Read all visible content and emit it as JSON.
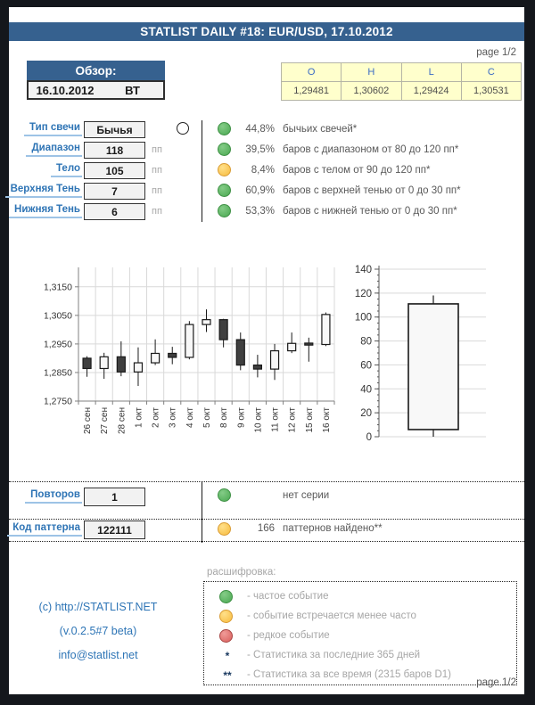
{
  "header": {
    "title": "STATLIST DAILY #18: EUR/USD, 17.10.2012",
    "page_top": "page 1/2",
    "page_bottom": "page 1/2"
  },
  "overview": {
    "title": "Обзор:",
    "date": "16.10.2012",
    "weekday": "ВТ"
  },
  "ohlc": {
    "headers": [
      "O",
      "H",
      "L",
      "C"
    ],
    "values": [
      "1,29481",
      "1,30602",
      "1,29424",
      "1,30531"
    ]
  },
  "stats": {
    "rows": [
      {
        "label": "Тип свечи",
        "value": "Бычья",
        "unit": "",
        "icon": "candle-type-circle-icon",
        "dot_class": "dot dot-green stat-dot",
        "percent": "44,8%",
        "desc": "бычьих свечей*"
      },
      {
        "label": "Диапазон",
        "value": "118",
        "unit": "пп",
        "icon": "",
        "dot_class": "dot dot-green stat-dot",
        "percent": "39,5%",
        "desc": "баров с диапазоном от 80 до 120 пп*"
      },
      {
        "label": "Тело",
        "value": "105",
        "unit": "пп",
        "icon": "",
        "dot_class": "dot dot-yellow stat-dot",
        "percent": "8,4%",
        "desc": "баров с телом от 90 до 120 пп*"
      },
      {
        "label": "Верхняя Тень",
        "value": "7",
        "unit": "пп",
        "icon": "",
        "dot_class": "dot dot-green stat-dot",
        "percent": "60,9%",
        "desc": "баров с верхней тенью от 0 до 30 пп*"
      },
      {
        "label": "Нижняя Тень",
        "value": "6",
        "unit": "пп",
        "icon": "",
        "dot_class": "dot dot-green stat-dot",
        "percent": "53,3%",
        "desc": "баров с нижней тенью от 0 до 30 пп*"
      }
    ]
  },
  "patterns": {
    "rows": [
      {
        "label": "Повторов",
        "value": "1",
        "dot_class": "dot dot-green pat-dot",
        "count": "",
        "desc": "нет серии"
      },
      {
        "label": "Код паттерна",
        "value": "122111",
        "dot_class": "dot dot-yellow pat-dot",
        "count": "166",
        "desc": "паттернов найдено**"
      }
    ]
  },
  "legend": {
    "title": "расшифровка:",
    "items": [
      {
        "marker_text": "",
        "mark_class": "lmark dot dot-green",
        "text": "- частое событие"
      },
      {
        "marker_text": "",
        "mark_class": "lmark dot dot-yellow",
        "text": "- событие встречается менее часто"
      },
      {
        "marker_text": "",
        "mark_class": "lmark dot dot-red",
        "text": "- редкое событие"
      },
      {
        "marker_text": "*",
        "mark_class": "lmark star",
        "text": "- Статистика за последние 365 дней"
      },
      {
        "marker_text": "**",
        "mark_class": "lmark star",
        "text": "- Статистика за все время (2315 баров D1)"
      }
    ]
  },
  "footer": {
    "copyright": "(c) http://STATLIST.NET",
    "version": "(v.0.2.5#7 beta)",
    "email": "info@statlist.net"
  },
  "colors": {
    "banner_blue": "#36618f",
    "label_blue": "#2e74b5",
    "underline_blue": "#9dc3e6",
    "status_green": "#56b45c",
    "status_yellow": "#f7bb3e",
    "status_red": "#d95f5c",
    "table_yellow": "#ffffcc",
    "cell_gray": "#f2f2f2",
    "link_blue": "#2e75b6",
    "muted_gray": "#a6a6a6",
    "frame_black": "#14171c"
  },
  "chart_data": [
    {
      "type": "candlestick",
      "title": "",
      "xlabel": "",
      "ylabel": "",
      "ylim": [
        1.275,
        1.322
      ],
      "grid": true,
      "yticks": [
        {
          "value": 1.275,
          "label": "1,2750"
        },
        {
          "value": 1.285,
          "label": "1,2850"
        },
        {
          "value": 1.295,
          "label": "1,2950"
        },
        {
          "value": 1.305,
          "label": "1,3050"
        },
        {
          "value": 1.315,
          "label": "1,3150"
        }
      ],
      "candles": [
        {
          "date": "26 сен",
          "open": 1.29,
          "high": 1.2907,
          "low": 1.2835,
          "close": 1.2864
        },
        {
          "date": "27 сен",
          "open": 1.2864,
          "high": 1.2919,
          "low": 1.2828,
          "close": 1.2905
        },
        {
          "date": "28 сен",
          "open": 1.2905,
          "high": 1.2959,
          "low": 1.2837,
          "close": 1.2852
        },
        {
          "date": "1 окт",
          "open": 1.2852,
          "high": 1.2938,
          "low": 1.2803,
          "close": 1.2884
        },
        {
          "date": "2 окт",
          "open": 1.2884,
          "high": 1.2966,
          "low": 1.2876,
          "close": 1.2917
        },
        {
          "date": "3 окт",
          "open": 1.2917,
          "high": 1.294,
          "low": 1.2879,
          "close": 1.2903
        },
        {
          "date": "4 окт",
          "open": 1.2903,
          "high": 1.303,
          "low": 1.2896,
          "close": 1.3018
        },
        {
          "date": "5 окт",
          "open": 1.3018,
          "high": 1.3071,
          "low": 1.2992,
          "close": 1.3035
        },
        {
          "date": "8 окт",
          "open": 1.3035,
          "high": 1.3038,
          "low": 1.2938,
          "close": 1.2965
        },
        {
          "date": "9 окт",
          "open": 1.2965,
          "high": 1.299,
          "low": 1.2858,
          "close": 1.2876
        },
        {
          "date": "10 окт",
          "open": 1.2876,
          "high": 1.2912,
          "low": 1.2833,
          "close": 1.2862
        },
        {
          "date": "11 окт",
          "open": 1.2862,
          "high": 1.295,
          "low": 1.2824,
          "close": 1.2926
        },
        {
          "date": "12 окт",
          "open": 1.2926,
          "high": 1.299,
          "low": 1.2918,
          "close": 1.2952
        },
        {
          "date": "15 окт",
          "open": 1.2953,
          "high": 1.2972,
          "low": 1.2888,
          "close": 1.2946
        },
        {
          "date": "16 окт",
          "open": 1.29481,
          "high": 1.30602,
          "low": 1.29424,
          "close": 1.30531
        }
      ]
    },
    {
      "type": "candlestick",
      "title": "",
      "xlabel": "",
      "ylabel": "",
      "ylim": [
        0,
        140
      ],
      "ytick_step": 20,
      "minor_tick_step": 5,
      "grid": true,
      "candles": [
        {
          "date": "",
          "open": 6,
          "high": 118,
          "low": 0,
          "close": 111
        }
      ]
    }
  ]
}
